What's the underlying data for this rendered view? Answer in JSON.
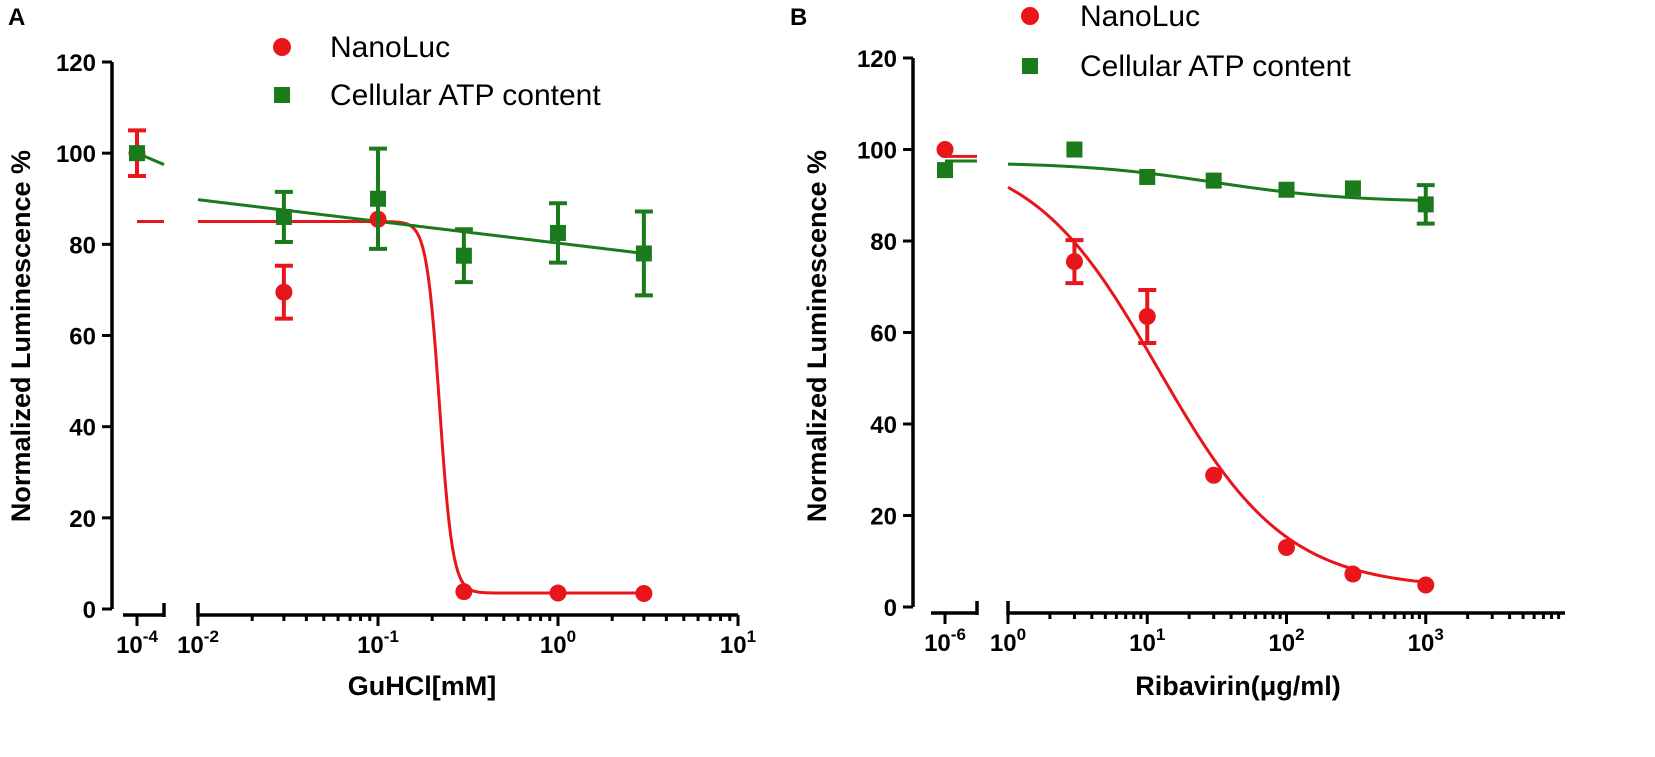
{
  "chart_data": [
    {
      "panel": "A",
      "type": "scatter",
      "xscale": "log",
      "xlabel": "GuHCl[mM]",
      "ylabel": "Normalized Luminescence %",
      "ylim": [
        0,
        120
      ],
      "yticks": [
        0,
        20,
        40,
        60,
        80,
        100,
        120
      ],
      "xticks": [
        {
          "segment": "control",
          "value": 0.0001,
          "base": "10",
          "exp": "-4"
        },
        {
          "segment": "main",
          "value": 0.01,
          "base": "10",
          "exp": "-2"
        },
        {
          "segment": "main",
          "value": 0.1,
          "base": "10",
          "exp": "-1"
        },
        {
          "segment": "main",
          "value": 1,
          "base": "10",
          "exp": "0"
        },
        {
          "segment": "main",
          "value": 10,
          "base": "10",
          "exp": "1"
        }
      ],
      "xlim_main": [
        0.01,
        10
      ],
      "control_x": 0.0001,
      "legend": [
        "NanoLuc",
        "Cellular ATP content"
      ],
      "series": [
        {
          "name": "NanoLuc",
          "color": "#e8161b",
          "marker": "circle",
          "control": {
            "x": 0.0001,
            "y": 100,
            "err": 5
          },
          "points": [
            {
              "x": 0.03,
              "y": 69.5,
              "err": 5.8
            },
            {
              "x": 0.1,
              "y": 85.5,
              "err": 0
            },
            {
              "x": 0.3,
              "y": 3.8,
              "err": 0
            },
            {
              "x": 1,
              "y": 3.5,
              "err": 0
            },
            {
              "x": 3,
              "y": 3.4,
              "err": 0
            }
          ],
          "fit": {
            "type": "hill",
            "top": 85,
            "bottom": 3.5,
            "ec50": 0.22,
            "hill": 12
          },
          "control_fit_level": 85
        },
        {
          "name": "Cellular ATP content",
          "color": "#1b7a1b",
          "marker": "square",
          "control": {
            "x": 0.0001,
            "y": 100,
            "err": 0
          },
          "points": [
            {
              "x": 0.03,
              "y": 86,
              "err": 5.5
            },
            {
              "x": 0.1,
              "y": 90,
              "err": 11
            },
            {
              "x": 0.3,
              "y": 77.5,
              "err": 5.8
            },
            {
              "x": 1,
              "y": 82.5,
              "err": 6.5
            },
            {
              "x": 3,
              "y": 78,
              "err": 9.2
            }
          ],
          "fit": {
            "type": "loglinear",
            "y_at_0.01": 89.8,
            "y_at_3": 78
          },
          "control_fit": [
            100,
            97.5
          ]
        }
      ]
    },
    {
      "panel": "B",
      "type": "scatter",
      "xscale": "log",
      "xlabel": "Ribavirin(μg/ml)",
      "ylabel": "Normalized Luminescence %",
      "ylim": [
        0,
        120
      ],
      "yticks": [
        0,
        20,
        40,
        60,
        80,
        100,
        120
      ],
      "xticks": [
        {
          "segment": "control",
          "value": 1e-06,
          "base": "10",
          "exp": "-6"
        },
        {
          "segment": "main",
          "value": 1,
          "base": "10",
          "exp": "0"
        },
        {
          "segment": "main",
          "value": 10,
          "base": "10",
          "exp": "1"
        },
        {
          "segment": "main",
          "value": 100,
          "base": "10",
          "exp": "2"
        },
        {
          "segment": "main",
          "value": 1000,
          "base": "10",
          "exp": "3"
        }
      ],
      "xlim_main": [
        1,
        10000
      ],
      "control_x": 1e-06,
      "legend": [
        "NanoLuc",
        "Cellular ATP content"
      ],
      "series": [
        {
          "name": "NanoLuc",
          "color": "#e8161b",
          "marker": "circle",
          "control": {
            "x": 1e-06,
            "y": 100,
            "err": 0
          },
          "points": [
            {
              "x": 3,
              "y": 75.5,
              "err": 4.7
            },
            {
              "x": 10,
              "y": 63.5,
              "err": 5.8
            },
            {
              "x": 30,
              "y": 28.8,
              "err": 0
            },
            {
              "x": 100,
              "y": 13,
              "err": 0
            },
            {
              "x": 300,
              "y": 7.2,
              "err": 0
            },
            {
              "x": 1000,
              "y": 4.8,
              "err": 0
            }
          ],
          "fit": {
            "type": "hill",
            "top": 100,
            "bottom": 4,
            "ec50": 12,
            "hill": 0.95
          },
          "control_fit_level": 98.5
        },
        {
          "name": "Cellular ATP content",
          "color": "#1b7a1b",
          "marker": "square",
          "control": {
            "x": 1e-06,
            "y": 95.5,
            "err": 0
          },
          "points": [
            {
              "x": 3,
              "y": 100,
              "err": 0
            },
            {
              "x": 10,
              "y": 94,
              "err": 0
            },
            {
              "x": 30,
              "y": 93.2,
              "err": 0
            },
            {
              "x": 100,
              "y": 91.2,
              "err": 0
            },
            {
              "x": 300,
              "y": 91.5,
              "err": 0
            },
            {
              "x": 1000,
              "y": 88,
              "err": 4.2
            }
          ],
          "fit": {
            "type": "hill",
            "top": 97.2,
            "bottom": 88.5,
            "ec50": 30,
            "hill": 0.9
          },
          "control_fit_level": 97.5
        }
      ]
    }
  ]
}
